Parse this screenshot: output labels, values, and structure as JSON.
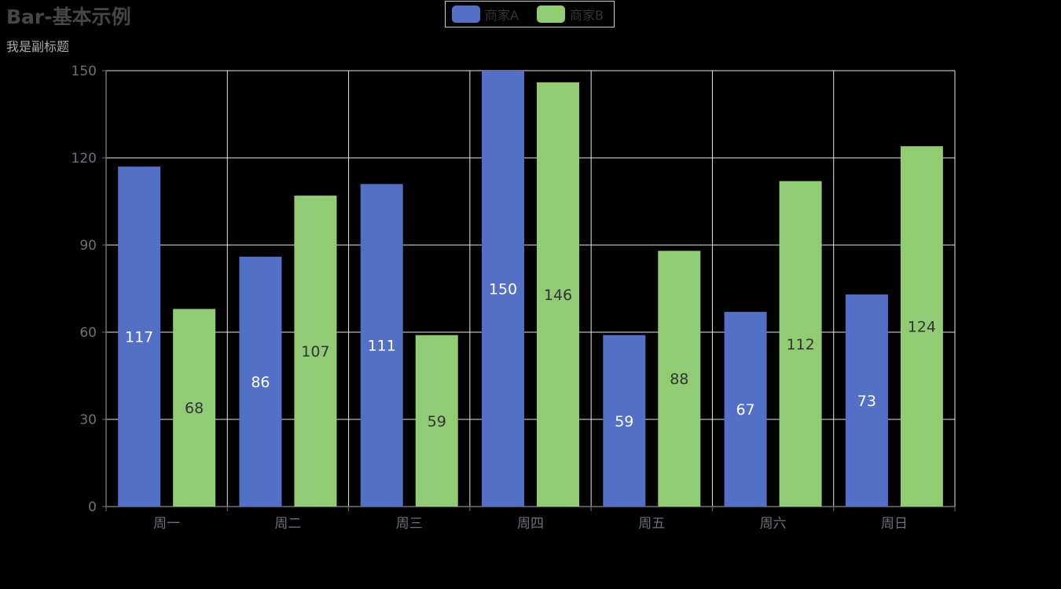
{
  "chart_data": {
    "type": "bar",
    "title": "Bar-基本示例",
    "subtitle": "我是副标题",
    "categories": [
      "周一",
      "周二",
      "周三",
      "周四",
      "周五",
      "周六",
      "周日"
    ],
    "series": [
      {
        "name": "商家A",
        "values": [
          117,
          86,
          111,
          150,
          59,
          67,
          73
        ],
        "color": "#5470c6"
      },
      {
        "name": "商家B",
        "values": [
          68,
          107,
          59,
          146,
          88,
          112,
          124
        ],
        "color": "#91cc75"
      }
    ],
    "ylim": [
      0,
      150
    ],
    "yticks": [
      0,
      30,
      60,
      90,
      120,
      150
    ],
    "grid": true,
    "legend_position": "top-center",
    "data_labels": true
  }
}
